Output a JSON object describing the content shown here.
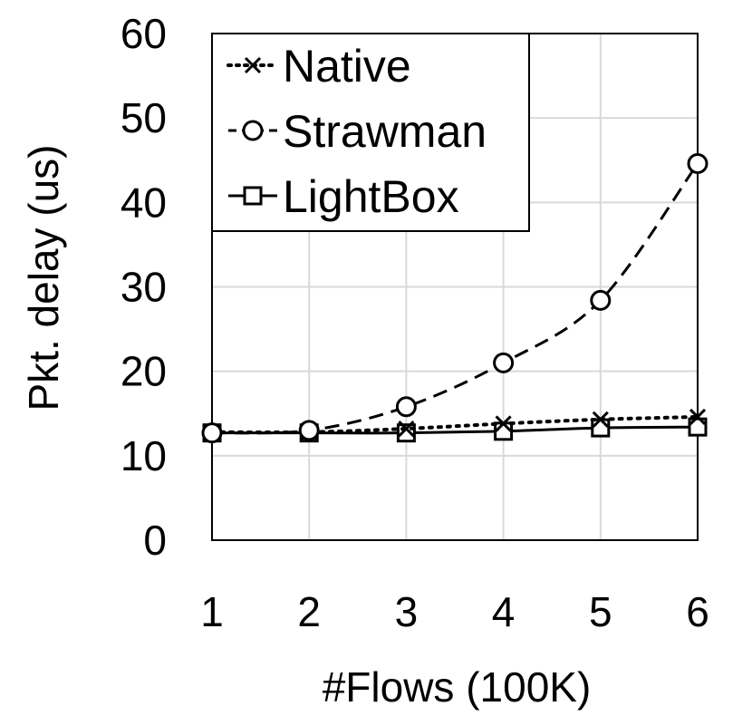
{
  "chart_data": {
    "type": "line",
    "title": "",
    "xlabel": "#Flows (100K)",
    "ylabel": "Pkt. delay (us)",
    "x": [
      1,
      2,
      3,
      4,
      5,
      6
    ],
    "x_tick_labels": [
      "1",
      "2",
      "3",
      "4",
      "5",
      "6"
    ],
    "xlim": [
      1,
      6
    ],
    "ylim": [
      0,
      60
    ],
    "y_ticks": [
      0,
      10,
      20,
      30,
      40,
      50,
      60
    ],
    "y_tick_labels": [
      "0",
      "10",
      "20",
      "30",
      "40",
      "50",
      "60"
    ],
    "grid": true,
    "legend": "top-left",
    "series": [
      {
        "name": "Native",
        "marker": "x",
        "line_style": "dotted",
        "color": "#000000",
        "values": [
          12.8,
          12.8,
          13.2,
          13.8,
          14.3,
          14.6
        ]
      },
      {
        "name": "Strawman",
        "marker": "circle",
        "line_style": "dashed",
        "color": "#000000",
        "values": [
          12.7,
          13.0,
          15.8,
          21.0,
          28.4,
          44.6
        ]
      },
      {
        "name": "LightBox",
        "marker": "square",
        "line_style": "solid",
        "color": "#000000",
        "values": [
          12.7,
          12.7,
          12.7,
          12.9,
          13.3,
          13.4
        ]
      }
    ]
  }
}
